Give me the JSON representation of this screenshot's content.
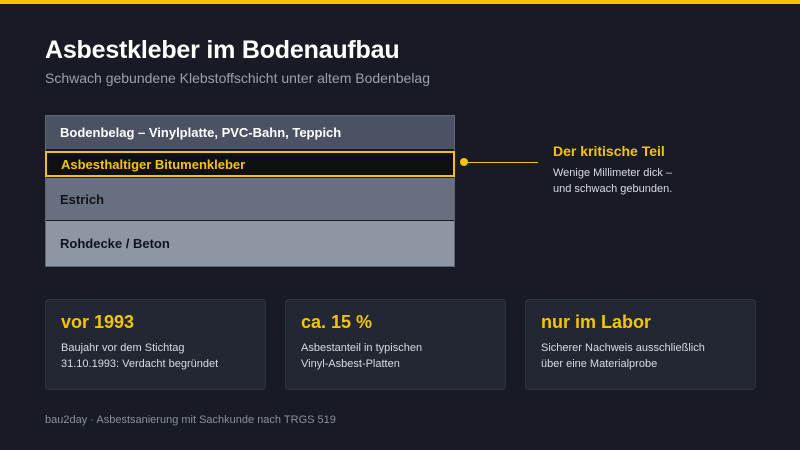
{
  "header": {
    "title": "Asbestkleber im Bodenaufbau",
    "subtitle": "Schwach gebundene Klebstoffschicht unter altem Bodenbelag"
  },
  "layers": [
    "Bodenbelag – Vinylplatte, PVC-Bahn, Teppich",
    "Asbesthaltiger Bitumenkleber",
    "Estrich",
    "Rohdecke / Beton"
  ],
  "callout": {
    "title": "Der kritische Teil",
    "line1": "Wenige Millimeter dick –",
    "line2": "und schwach gebunden."
  },
  "facts": [
    {
      "value": "vor 1993",
      "line1": "Baujahr vor dem Stichtag",
      "line2": "31.10.1993: Verdacht begründet"
    },
    {
      "value": "ca. 15 %",
      "line1": "Asbestanteil in typischen",
      "line2": "Vinyl-Asbest-Platten"
    },
    {
      "value": "nur im Labor",
      "line1": "Sicherer Nachweis ausschließlich",
      "line2": "über eine Materialprobe"
    }
  ],
  "footer": "bau2day · Asbestsanierung mit Sachkunde nach TRGS 519",
  "colors": {
    "accent": "#f5c400",
    "background": "#181b25",
    "card": "#232733"
  }
}
